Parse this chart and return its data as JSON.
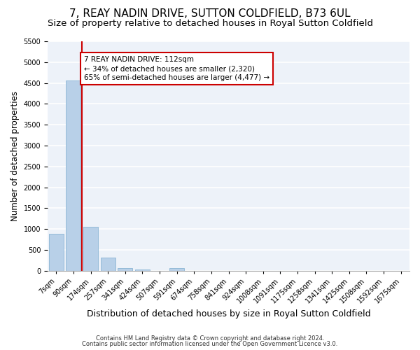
{
  "title": "7, REAY NADIN DRIVE, SUTTON COLDFIELD, B73 6UL",
  "subtitle": "Size of property relative to detached houses in Royal Sutton Coldfield",
  "xlabel": "Distribution of detached houses by size in Royal Sutton Coldfield",
  "ylabel": "Number of detached properties",
  "footnote1": "Contains HM Land Registry data © Crown copyright and database right 2024.",
  "footnote2": "Contains public sector information licensed under the Open Government Licence v3.0.",
  "bar_labels": [
    "7sqm",
    "90sqm",
    "174sqm",
    "257sqm",
    "341sqm",
    "424sqm",
    "507sqm",
    "591sqm",
    "674sqm",
    "758sqm",
    "841sqm",
    "924sqm",
    "1008sqm",
    "1091sqm",
    "1175sqm",
    "1258sqm",
    "1341sqm",
    "1425sqm",
    "1508sqm",
    "1592sqm",
    "1675sqm"
  ],
  "bar_values": [
    880,
    4560,
    1060,
    310,
    70,
    30,
    0,
    60,
    0,
    0,
    0,
    0,
    0,
    0,
    0,
    0,
    0,
    0,
    0,
    0,
    0
  ],
  "bar_color": "#b8d0e8",
  "bar_edge_color": "#8ab4d4",
  "ylim": [
    0,
    5500
  ],
  "yticks": [
    0,
    500,
    1000,
    1500,
    2000,
    2500,
    3000,
    3500,
    4000,
    4500,
    5000,
    5500
  ],
  "property_line_color": "#cc0000",
  "annotation_text": "7 REAY NADIN DRIVE: 112sqm\n← 34% of detached houses are smaller (2,320)\n65% of semi-detached houses are larger (4,477) →",
  "annotation_box_color": "#cc0000",
  "background_color": "#edf2f9",
  "grid_color": "#ffffff",
  "title_fontsize": 11,
  "subtitle_fontsize": 9.5,
  "tick_fontsize": 7,
  "ylabel_fontsize": 8.5,
  "xlabel_fontsize": 9
}
